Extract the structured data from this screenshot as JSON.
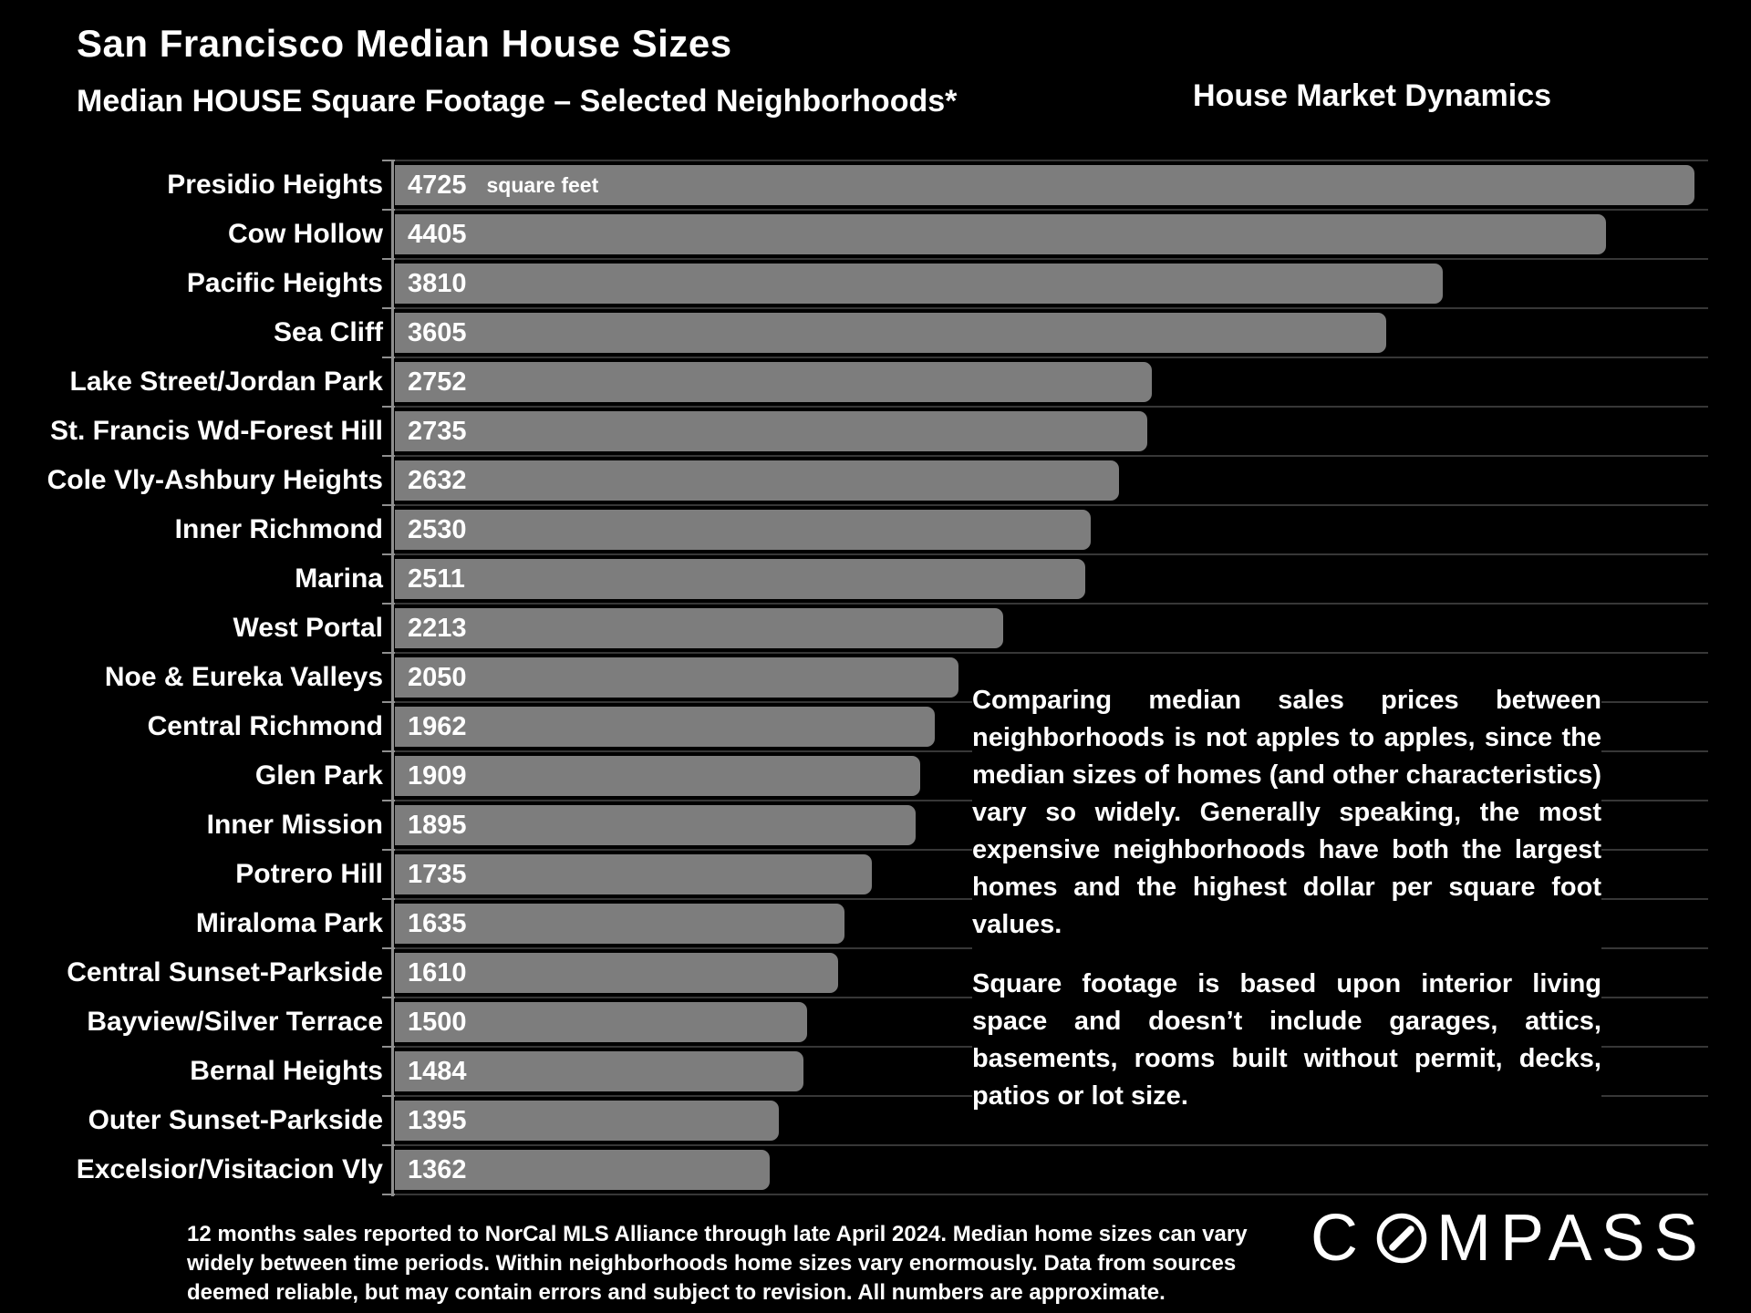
{
  "header": {
    "title": "San Francisco Median House Sizes",
    "subtitle": "Median HOUSE Square Footage – Selected Neighborhoods*",
    "right_heading": "House Market Dynamics"
  },
  "chart_data": {
    "type": "bar",
    "orientation": "horizontal",
    "title": "Median HOUSE Square Footage – Selected Neighborhoods*",
    "unit_label": "square feet",
    "categories": [
      "Presidio Heights",
      "Cow Hollow",
      "Pacific Heights",
      "Sea Cliff",
      "Lake Street/Jordan Park",
      "St. Francis Wd-Forest Hill",
      "Cole Vly-Ashbury Heights",
      "Inner Richmond",
      "Marina",
      "West Portal",
      "Noe & Eureka Valleys",
      "Central Richmond",
      "Glen Park",
      "Inner Mission",
      "Potrero Hill",
      "Miraloma Park",
      "Central Sunset-Parkside",
      "Bayview/Silver Terrace",
      "Bernal Heights",
      "Outer Sunset-Parkside",
      "Excelsior/Visitacion Vly"
    ],
    "values": [
      4725,
      4405,
      3810,
      3605,
      2752,
      2735,
      2632,
      2530,
      2511,
      2213,
      2050,
      1962,
      1909,
      1895,
      1735,
      1635,
      1610,
      1500,
      1484,
      1395,
      1362
    ],
    "xlim": [
      0,
      4775
    ],
    "grid": "category-separator-lines",
    "legend": "none",
    "bar_color": "#7d7d7d",
    "value_label_color": "#ffffff"
  },
  "annotation": {
    "paragraphs": [
      "Comparing median sales prices between neighborhoods is not apples to apples, since the median sizes of homes (and other characteristics) vary so widely. Generally speaking, the most expensive neighborhoods have both the largest homes and the highest dollar per square foot values.",
      "Square footage is based upon interior living space and doesn’t include garages, attics, basements, rooms built without permit, decks, patios or lot size."
    ]
  },
  "footnote": {
    "lines": [
      "12 months sales reported to NorCal MLS Alliance through late April 2024. Median home sizes can vary",
      "widely between time periods. Within neighborhoods home sizes vary enormously. Data from sources",
      "deemed reliable, but may contain errors and subject to revision. All numbers are approximate."
    ]
  },
  "logo": {
    "brand": "Compass",
    "text": "COMPASS",
    "prefix": "C",
    "suffix": "MPASS"
  },
  "colors": {
    "background": "#000000",
    "bar": "#7d7d7d",
    "separator_line": "#373737",
    "axis_line": "#8f8f8f",
    "text": "#ffffff"
  }
}
